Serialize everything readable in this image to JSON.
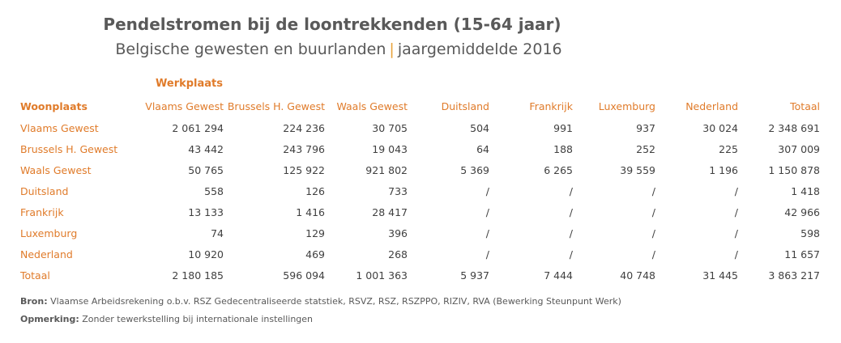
{
  "title": "Pendelstromen bij de loontrekkenden (15-64 jaar)",
  "subtitle_left": "Belgische gewesten en buurlanden",
  "subtitle_sep": "|",
  "subtitle_right": "jaargemiddelde 2016",
  "chart_data": {
    "type": "table",
    "column_group_label": "Werkplaats",
    "row_header": "Woonplaats",
    "columns": [
      "Vlaams Gewest",
      "Brussels H. Gewest",
      "Waals Gewest",
      "Duitsland",
      "Frankrijk",
      "Luxemburg",
      "Nederland",
      "Totaal"
    ],
    "rows": [
      {
        "label": "Vlaams Gewest",
        "values": [
          "2 061 294",
          "224 236",
          "30 705",
          "504",
          "991",
          "937",
          "30 024",
          "2 348 691"
        ]
      },
      {
        "label": "Brussels H. Gewest",
        "values": [
          "43 442",
          "243 796",
          "19 043",
          "64",
          "188",
          "252",
          "225",
          "307 009"
        ]
      },
      {
        "label": "Waals Gewest",
        "values": [
          "50 765",
          "125 922",
          "921 802",
          "5 369",
          "6 265",
          "39 559",
          "1 196",
          "1 150 878"
        ]
      },
      {
        "label": "Duitsland",
        "values": [
          "558",
          "126",
          "733",
          "/",
          "/",
          "/",
          "/",
          "1 418"
        ]
      },
      {
        "label": "Frankrijk",
        "values": [
          "13 133",
          "1 416",
          "28 417",
          "/",
          "/",
          "/",
          "/",
          "42 966"
        ]
      },
      {
        "label": "Luxemburg",
        "values": [
          "74",
          "129",
          "396",
          "/",
          "/",
          "/",
          "/",
          "598"
        ]
      },
      {
        "label": "Nederland",
        "values": [
          "10 920",
          "469",
          "268",
          "/",
          "/",
          "/",
          "/",
          "11 657"
        ]
      },
      {
        "label": "Totaal",
        "values": [
          "2 180 185",
          "596 094",
          "1 001 363",
          "5 937",
          "7 444",
          "40 748",
          "31 445",
          "3 863 217"
        ]
      }
    ]
  },
  "source_label": "Bron:",
  "source_text": "Vlaamse Arbeidsrekening o.b.v. RSZ Gedecentraliseerde statstiek, RSVZ, RSZ, RSZPPO, RIZIV, RVA (Bewerking Steunpunt Werk)",
  "remark_label": "Opmerking:",
  "remark_text": "Zonder tewerkstelling bij internationale instellingen",
  "colors": {
    "accent": "#e07b2a",
    "text": "#404040",
    "title": "#595959",
    "separator": "#e8a33c"
  }
}
